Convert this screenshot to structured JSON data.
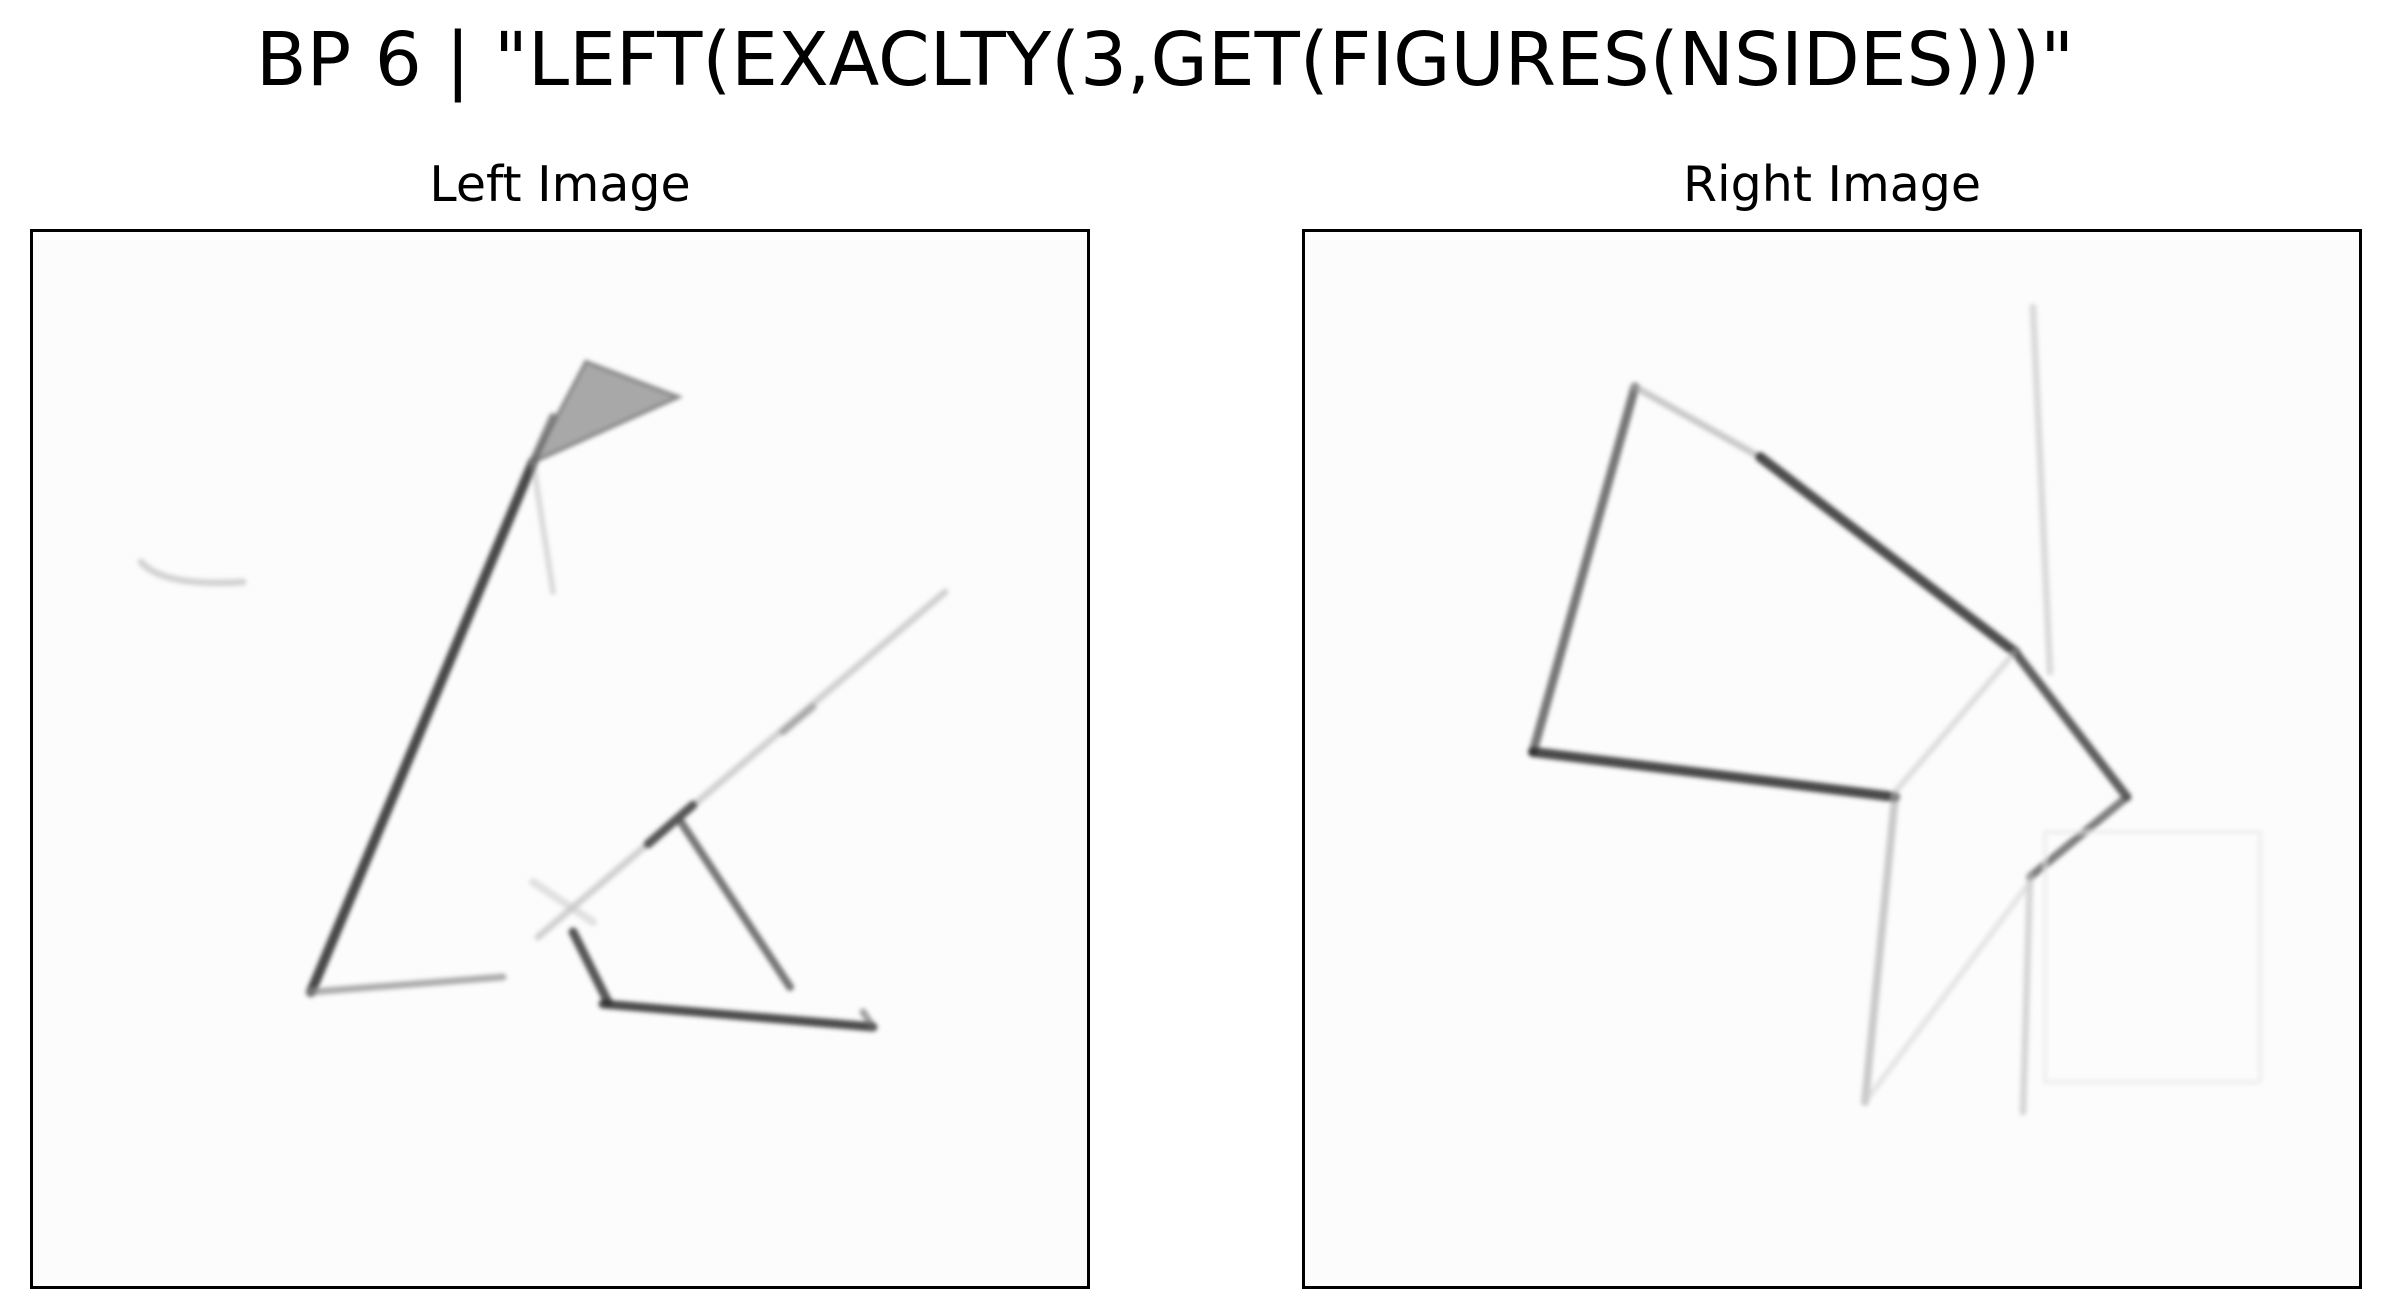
{
  "figure": {
    "title": "BP 6 | \"LEFT(EXACLTY(3,GET(FIGURES(NSIDES)))\""
  },
  "panels": {
    "left": {
      "title": "Left Image"
    },
    "right": {
      "title": "Right Image"
    }
  }
}
